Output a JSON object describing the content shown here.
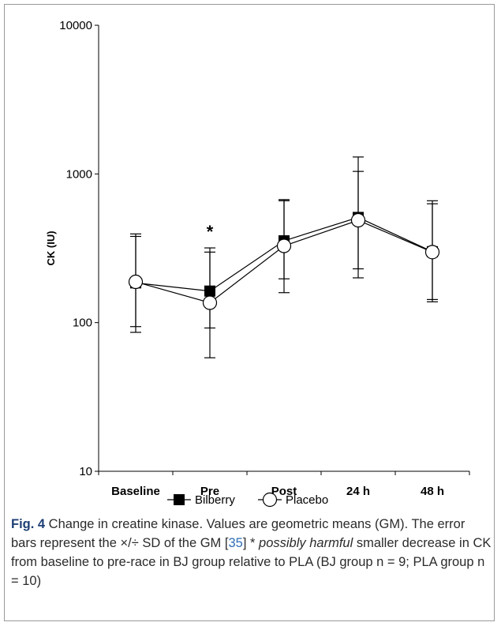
{
  "chart_data": {
    "type": "line",
    "categories": [
      "Baseline",
      "Pre",
      "Post",
      "24 h",
      "48 h"
    ],
    "ylabel": "CK (IU)",
    "yscale": "log",
    "ylim": [
      10,
      10000
    ],
    "yticks": [
      "10",
      "100",
      "1000",
      "10000"
    ],
    "grid": false,
    "legend_position": "bottom",
    "series": [
      {
        "name": "Bilberry",
        "marker": "filled-square",
        "color": "#000000",
        "values": [
          185,
          163,
          355,
          510,
          300
        ],
        "err_low": [
          94,
          92,
          197,
          230,
          143
        ],
        "err_high": [
          380,
          298,
          660,
          1040,
          630
        ]
      },
      {
        "name": "Placebo",
        "marker": "open-circle",
        "color": "#000000",
        "values": [
          188,
          136,
          328,
          488,
          298
        ],
        "err_low": [
          86,
          58,
          159,
          200,
          138
        ],
        "err_high": [
          395,
          318,
          672,
          1300,
          660
        ]
      }
    ],
    "annotations": [
      {
        "category": "Pre",
        "text": "*"
      }
    ]
  },
  "caption": {
    "fig_label": "Fig. 4",
    "text_1": " Change in creatine kinase. Values are geometric means (GM). The error bars represent the ×/÷ SD of the GM [",
    "ref": "35",
    "text_2": "] * ",
    "italic": "possibly harmful",
    "text_3": " smaller decrease in CK from baseline to pre-race in BJ group relative to PLA (BJ group n = 9; PLA group n = 10)"
  }
}
